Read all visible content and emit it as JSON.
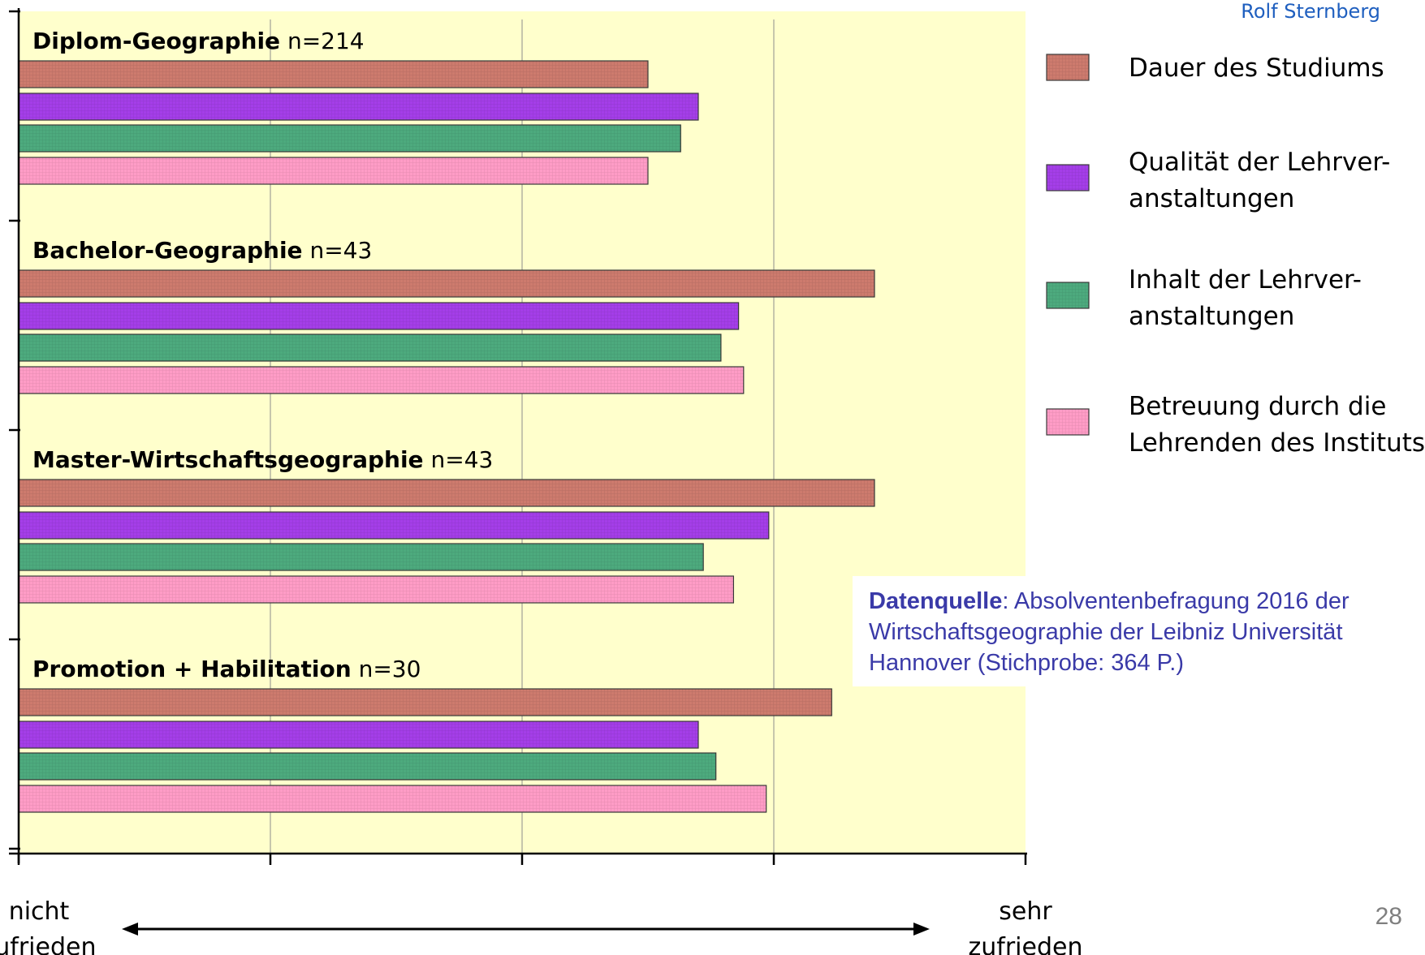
{
  "author": "Rolf Sternberg",
  "page_number": "28",
  "scale": {
    "left_label": [
      "nicht",
      "zufrieden"
    ],
    "right_label": [
      "sehr",
      "zufrieden"
    ]
  },
  "source": {
    "label": "Datenquelle",
    "text": ": Absolventenbefragung 2016 der Wirtschaftsgeographie der Leibniz Universität Hannover (Stichprobe: 364 P.)"
  },
  "colors": {
    "plot_background": "#ffffcc",
    "dauer": "#cd7b6e",
    "qualitaet": "#a43ee8",
    "inhalt": "#4daa7e",
    "betreuung": "#ff9cc6",
    "source_text": "#3a3aa8",
    "author_text": "#1f5fbf"
  },
  "chart_data": {
    "type": "bar",
    "orientation": "horizontal",
    "xlim": [
      0,
      4
    ],
    "grid": true,
    "legend_position": "right",
    "categories": [
      {
        "name": "Diplom-Geographie",
        "n": "n=214"
      },
      {
        "name": "Bachelor-Geographie",
        "n": "n=43"
      },
      {
        "name": "Master-Wirtschaftsgeographie",
        "n": "n=43"
      },
      {
        "name": "Promotion + Habilitation",
        "n": "n=30"
      }
    ],
    "series": [
      {
        "name": "Dauer des Studiums",
        "legend_lines": [
          "Dauer des Studiums"
        ],
        "color_key": "dauer",
        "values": [
          2.5,
          3.4,
          3.4,
          3.23
        ]
      },
      {
        "name": "Qualität der Lehrveranstaltungen",
        "legend_lines": [
          "Qualität der Lehrver-",
          "anstaltungen"
        ],
        "color_key": "qualitaet",
        "values": [
          2.7,
          2.86,
          2.98,
          2.7
        ]
      },
      {
        "name": "Inhalt der Lehrveranstaltungen",
        "legend_lines": [
          "Inhalt der Lehrver-",
          "anstaltungen"
        ],
        "color_key": "inhalt",
        "values": [
          2.63,
          2.79,
          2.72,
          2.77
        ]
      },
      {
        "name": "Betreuung durch die Lehrenden des Instituts",
        "legend_lines": [
          "Betreuung durch die",
          "Lehrenden des Instituts"
        ],
        "color_key": "betreuung",
        "values": [
          2.5,
          2.88,
          2.84,
          2.97
        ]
      }
    ]
  }
}
